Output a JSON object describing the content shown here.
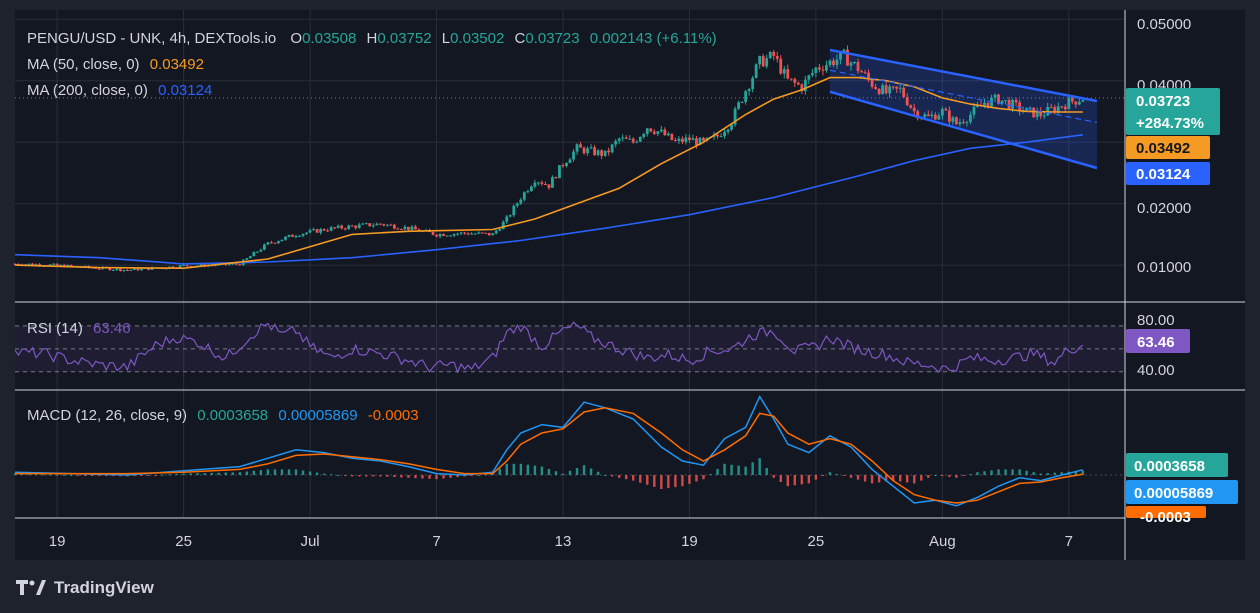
{
  "colors": {
    "background": "#1e222d",
    "pane": "#131722",
    "grid": "#2a2e39",
    "text": "#d1d4dc",
    "up": "#26a69a",
    "down": "#ef5350",
    "ma50": "#f59a23",
    "ma200": "#2962ff",
    "channel": "#2962ff",
    "rsi": "#7e57c2",
    "macd_line": "#2196f3",
    "signal_line": "#ff6d00",
    "hist_up": "#26a69a",
    "hist_down": "#ef5350"
  },
  "legend": {
    "symbol": "PENGU/USD - UNK, 4h, DEXTools.io",
    "o_label": "O",
    "o_value": "0.03508",
    "h_label": "H",
    "h_value": "0.03752",
    "l_label": "L",
    "l_value": "0.03502",
    "c_label": "C",
    "c_value": "0.03723",
    "change": "0.002143 (+6.11%)",
    "ma50_label": "MA (50, close, 0)",
    "ma50_value": "0.03492",
    "ma200_label": "MA (200, close, 0)",
    "ma200_value": "0.03124",
    "rsi_label": "RSI (14)",
    "rsi_value": "63.46",
    "macd_label": "MACD (12, 26, close, 9)",
    "macd_value": "0.0003658",
    "signal_value": "0.00005869",
    "hist_value": "-0.0003"
  },
  "badges": {
    "price": "0.03723",
    "price_change": "+284.73%",
    "ma50": "0.03492",
    "ma200": "0.03124",
    "rsi": "63.46",
    "macd": "0.0003658",
    "signal": "0.00005869",
    "hist": "-0.0003"
  },
  "price_axis": [
    "0.05000",
    "0.04000",
    "0.02000",
    "0.01000"
  ],
  "rsi_axis": [
    "80.00",
    "40.00"
  ],
  "time_axis": [
    "19",
    "25",
    "Jul",
    "7",
    "13",
    "19",
    "25",
    "Aug",
    "7"
  ],
  "brand": "TradingView",
  "chart_data": {
    "type": "line",
    "title": "PENGU/USD - UNK, 4h, DEXTools.io",
    "ylim": [
      0.004,
      0.0515
    ],
    "x_ticks": [
      "19",
      "25",
      "Jul",
      "7",
      "13",
      "19",
      "25",
      "Aug",
      "7"
    ],
    "x_tick_index": [
      12,
      48,
      84,
      120,
      156,
      192,
      228,
      264,
      300
    ],
    "x_range": [
      0,
      316
    ],
    "series": [
      {
        "name": "PENGU/USD",
        "kind": "close",
        "x": [
          0,
          8,
          16,
          24,
          32,
          40,
          48,
          56,
          64,
          72,
          80,
          88,
          96,
          104,
          112,
          120,
          128,
          136,
          140,
          144,
          148,
          152,
          156,
          160,
          164,
          168,
          172,
          176,
          180,
          184,
          188,
          192,
          196,
          200,
          204,
          208,
          212,
          216,
          220,
          224,
          228,
          232,
          236,
          240,
          244,
          248,
          252,
          256,
          260,
          264,
          268,
          272,
          276,
          280,
          284,
          288,
          292,
          296,
          300,
          304
        ],
        "values": [
          0.0102,
          0.0101,
          0.0098,
          0.0095,
          0.0092,
          0.0095,
          0.0099,
          0.01,
          0.0102,
          0.0135,
          0.015,
          0.0158,
          0.0163,
          0.0167,
          0.016,
          0.015,
          0.0152,
          0.015,
          0.0175,
          0.021,
          0.024,
          0.023,
          0.0265,
          0.029,
          0.0285,
          0.028,
          0.0305,
          0.03,
          0.0325,
          0.0315,
          0.03,
          0.0305,
          0.0298,
          0.031,
          0.0335,
          0.0385,
          0.043,
          0.044,
          0.04,
          0.039,
          0.042,
          0.043,
          0.044,
          0.042,
          0.0395,
          0.038,
          0.0385,
          0.035,
          0.034,
          0.035,
          0.033,
          0.0345,
          0.0365,
          0.037,
          0.036,
          0.035,
          0.0345,
          0.0355,
          0.0365,
          0.0372
        ]
      },
      {
        "name": "MA (50, close, 0)",
        "x": [
          0,
          24,
          48,
          72,
          96,
          112,
          120,
          136,
          148,
          160,
          172,
          184,
          196,
          208,
          216,
          224,
          232,
          240,
          248,
          256,
          264,
          272,
          280,
          288,
          296,
          304
        ],
        "values": [
          0.01,
          0.0096,
          0.0095,
          0.011,
          0.015,
          0.0155,
          0.0156,
          0.0158,
          0.0175,
          0.02,
          0.0225,
          0.0265,
          0.03,
          0.0345,
          0.037,
          0.0385,
          0.0405,
          0.0405,
          0.04,
          0.039,
          0.0372,
          0.0362,
          0.0355,
          0.035,
          0.0349,
          0.0349
        ]
      },
      {
        "name": "MA (200, close, 0)",
        "x": [
          0,
          24,
          48,
          72,
          96,
          120,
          144,
          168,
          192,
          216,
          240,
          256,
          272,
          288,
          304
        ],
        "values": [
          0.0117,
          0.0112,
          0.0102,
          0.0105,
          0.0112,
          0.0125,
          0.014,
          0.016,
          0.0182,
          0.021,
          0.0245,
          0.027,
          0.029,
          0.03,
          0.0312
        ]
      }
    ],
    "channel": {
      "upper": {
        "x": [
          232,
          308
        ],
        "values": [
          0.045,
          0.0367
        ]
      },
      "mid": {
        "x": [
          232,
          308
        ],
        "values": [
          0.0417,
          0.0332
        ]
      },
      "lower": {
        "x": [
          232,
          308
        ],
        "values": [
          0.0382,
          0.0258
        ]
      }
    },
    "rsi": {
      "ylim": [
        25,
        100
      ],
      "bands": [
        80,
        60,
        40
      ],
      "x": [
        0,
        8,
        16,
        24,
        32,
        40,
        46,
        52,
        60,
        68,
        72,
        76,
        80,
        84,
        90,
        96,
        104,
        112,
        118,
        124,
        130,
        136,
        140,
        144,
        150,
        156,
        160,
        164,
        172,
        180,
        186,
        192,
        198,
        204,
        210,
        216,
        222,
        228,
        232,
        236,
        242,
        248,
        254,
        260,
        266,
        272,
        278,
        284,
        290,
        296,
        300,
        304
      ],
      "values": [
        57,
        56,
        50,
        46,
        44,
        63,
        70,
        66,
        52,
        74,
        82,
        72,
        76,
        62,
        52,
        60,
        56,
        50,
        44,
        46,
        42,
        52,
        74,
        80,
        62,
        76,
        80,
        70,
        60,
        52,
        55,
        50,
        58,
        60,
        72,
        76,
        58,
        62,
        70,
        64,
        58,
        55,
        48,
        46,
        42,
        52,
        50,
        52,
        56,
        48,
        60,
        63
      ]
    },
    "macd": {
      "ylim": [
        -0.003,
        0.006
      ],
      "x": [
        0,
        16,
        32,
        48,
        64,
        72,
        80,
        88,
        96,
        104,
        112,
        120,
        128,
        136,
        140,
        144,
        150,
        156,
        162,
        168,
        176,
        184,
        190,
        196,
        202,
        208,
        212,
        216,
        220,
        226,
        232,
        238,
        244,
        250,
        256,
        262,
        268,
        274,
        280,
        286,
        292,
        298,
        304
      ],
      "macd_line": [
        0.0002,
        0.0001,
        0.0,
        0.0003,
        0.0006,
        0.0012,
        0.0018,
        0.0016,
        0.0012,
        0.001,
        0.0006,
        0.0001,
        0.0,
        0.0002,
        0.0018,
        0.003,
        0.0036,
        0.0034,
        0.0052,
        0.0048,
        0.004,
        0.002,
        0.001,
        0.0007,
        0.0026,
        0.0034,
        0.0056,
        0.004,
        0.0022,
        0.0016,
        0.0028,
        0.002,
        0.0004,
        -0.0008,
        -0.002,
        -0.0018,
        -0.0022,
        -0.0016,
        -0.0008,
        -0.0002,
        -0.0004,
        0.0,
        0.00037
      ],
      "signal_line": [
        0.0001,
        0.0001,
        0.0001,
        0.0002,
        0.0004,
        0.0008,
        0.0014,
        0.0015,
        0.0013,
        0.0011,
        0.0008,
        0.0004,
        0.0001,
        0.0001,
        0.001,
        0.0022,
        0.003,
        0.0033,
        0.0045,
        0.0048,
        0.0044,
        0.003,
        0.0018,
        0.001,
        0.0018,
        0.0028,
        0.0044,
        0.0042,
        0.003,
        0.0022,
        0.0026,
        0.0022,
        0.001,
        -0.0004,
        -0.0014,
        -0.0018,
        -0.002,
        -0.0018,
        -0.0012,
        -0.0006,
        -0.0005,
        -0.0002,
        6e-05
      ]
    }
  }
}
